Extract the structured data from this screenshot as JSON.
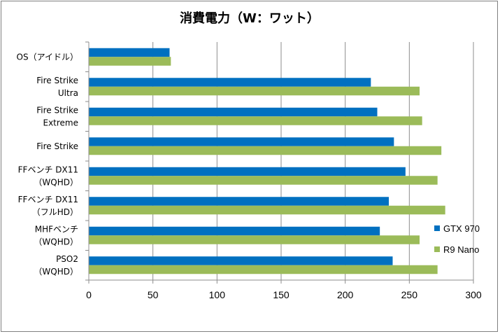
{
  "chart_data": {
    "type": "bar",
    "orientation": "horizontal",
    "title": "消費電力（W：ワット）",
    "categories": [
      [
        "OS（アイドル）"
      ],
      [
        "Fire Strike",
        "Ultra"
      ],
      [
        "Fire Strike",
        "Extreme"
      ],
      [
        "Fire Strike"
      ],
      [
        "FFベンチ DX11",
        "（WQHD）"
      ],
      [
        "FFベンチ DX11",
        "（フルHD）"
      ],
      [
        "MHFベンチ",
        "（WQHD）"
      ],
      [
        "PSO2",
        "（WQHD）"
      ]
    ],
    "series": [
      {
        "name": "GTX 970",
        "color": "#0070c0",
        "values": [
          63,
          220,
          225,
          238,
          247,
          234,
          227,
          237
        ]
      },
      {
        "name": "R9 Nano",
        "color": "#9bbb59",
        "values": [
          64,
          258,
          260,
          275,
          272,
          278,
          258,
          272
        ]
      }
    ],
    "xlim": [
      0,
      300
    ],
    "ticks": [
      "0",
      "50",
      "100",
      "150",
      "200",
      "250",
      "300"
    ],
    "grid": true,
    "legend": "right"
  }
}
